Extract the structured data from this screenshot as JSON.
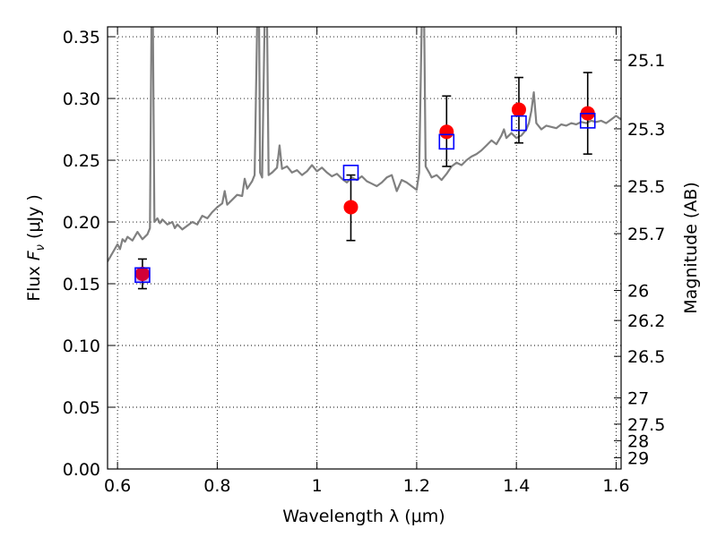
{
  "chart_data": {
    "type": "scatter",
    "xlabel": "Wavelength  λ (μm)",
    "ylabel_prefix": "Flux  ",
    "ylabel_symbol": "F",
    "ylabel_subscript": "ν",
    "ylabel_suffix": "  (μJy )",
    "y2label": "Magnitude (AB)",
    "xlim": [
      0.58,
      1.61
    ],
    "ylim": [
      0.0,
      0.358
    ],
    "grid": true,
    "xticks": [
      {
        "value": 0.6,
        "label": "0.6"
      },
      {
        "value": 0.8,
        "label": "0.8"
      },
      {
        "value": 1.0,
        "label": "1"
      },
      {
        "value": 1.2,
        "label": "1.2"
      },
      {
        "value": 1.4,
        "label": "1.4"
      },
      {
        "value": 1.6,
        "label": "1.6"
      }
    ],
    "yticks": [
      {
        "value": 0.0,
        "label": "0.00"
      },
      {
        "value": 0.05,
        "label": "0.05"
      },
      {
        "value": 0.1,
        "label": "0.10"
      },
      {
        "value": 0.15,
        "label": "0.15"
      },
      {
        "value": 0.2,
        "label": "0.20"
      },
      {
        "value": 0.25,
        "label": "0.25"
      },
      {
        "value": 0.3,
        "label": "0.30"
      },
      {
        "value": 0.35,
        "label": "0.35"
      }
    ],
    "y2ticks": [
      {
        "magnitude": 25.1,
        "label": "25.1"
      },
      {
        "magnitude": 25.3,
        "label": "25.3"
      },
      {
        "magnitude": 25.5,
        "label": "25.5"
      },
      {
        "magnitude": 25.7,
        "label": "25.7"
      },
      {
        "magnitude": 26.0,
        "label": "26"
      },
      {
        "magnitude": 26.2,
        "label": "26.2"
      },
      {
        "magnitude": 26.5,
        "label": "26.5"
      },
      {
        "magnitude": 27.0,
        "label": "27"
      },
      {
        "magnitude": 27.5,
        "label": "27.5"
      },
      {
        "magnitude": 28.0,
        "label": "28"
      },
      {
        "magnitude": 29.0,
        "label": "29"
      }
    ],
    "observed": {
      "color": "#ff0000",
      "points": [
        {
          "x": 0.65,
          "y": 0.158,
          "yerr_low": 0.146,
          "yerr_high": 0.17
        },
        {
          "x": 1.068,
          "y": 0.212,
          "yerr_low": 0.185,
          "yerr_high": 0.238
        },
        {
          "x": 1.26,
          "y": 0.273,
          "yerr_low": 0.245,
          "yerr_high": 0.302
        },
        {
          "x": 1.405,
          "y": 0.291,
          "yerr_low": 0.264,
          "yerr_high": 0.317
        },
        {
          "x": 1.543,
          "y": 0.288,
          "yerr_low": 0.255,
          "yerr_high": 0.321
        }
      ]
    },
    "model_photometry": {
      "color": "#0000ff",
      "points": [
        {
          "x": 0.65,
          "y": 0.157
        },
        {
          "x": 1.068,
          "y": 0.24
        },
        {
          "x": 1.26,
          "y": 0.265
        },
        {
          "x": 1.405,
          "y": 0.28
        },
        {
          "x": 1.543,
          "y": 0.282
        }
      ]
    },
    "spectrum": {
      "color": "#808080",
      "points": [
        [
          0.58,
          0.168
        ],
        [
          0.59,
          0.175
        ],
        [
          0.6,
          0.182
        ],
        [
          0.605,
          0.178
        ],
        [
          0.61,
          0.186
        ],
        [
          0.615,
          0.184
        ],
        [
          0.62,
          0.188
        ],
        [
          0.63,
          0.185
        ],
        [
          0.64,
          0.192
        ],
        [
          0.645,
          0.189
        ],
        [
          0.65,
          0.186
        ],
        [
          0.66,
          0.19
        ],
        [
          0.665,
          0.195
        ],
        [
          0.668,
          0.36
        ],
        [
          0.671,
          0.36
        ],
        [
          0.674,
          0.2
        ],
        [
          0.68,
          0.203
        ],
        [
          0.685,
          0.199
        ],
        [
          0.69,
          0.202
        ],
        [
          0.7,
          0.198
        ],
        [
          0.71,
          0.2
        ],
        [
          0.715,
          0.195
        ],
        [
          0.72,
          0.198
        ],
        [
          0.73,
          0.194
        ],
        [
          0.74,
          0.197
        ],
        [
          0.75,
          0.2
        ],
        [
          0.76,
          0.198
        ],
        [
          0.77,
          0.205
        ],
        [
          0.78,
          0.203
        ],
        [
          0.79,
          0.208
        ],
        [
          0.8,
          0.212
        ],
        [
          0.81,
          0.215
        ],
        [
          0.815,
          0.225
        ],
        [
          0.82,
          0.214
        ],
        [
          0.83,
          0.218
        ],
        [
          0.84,
          0.222
        ],
        [
          0.85,
          0.221
        ],
        [
          0.855,
          0.235
        ],
        [
          0.86,
          0.227
        ],
        [
          0.87,
          0.233
        ],
        [
          0.875,
          0.238
        ],
        [
          0.88,
          0.36
        ],
        [
          0.884,
          0.36
        ],
        [
          0.886,
          0.24
        ],
        [
          0.89,
          0.236
        ],
        [
          0.895,
          0.36
        ],
        [
          0.9,
          0.36
        ],
        [
          0.903,
          0.238
        ],
        [
          0.91,
          0.24
        ],
        [
          0.92,
          0.244
        ],
        [
          0.925,
          0.262
        ],
        [
          0.93,
          0.243
        ],
        [
          0.94,
          0.245
        ],
        [
          0.95,
          0.24
        ],
        [
          0.96,
          0.242
        ],
        [
          0.97,
          0.238
        ],
        [
          0.98,
          0.241
        ],
        [
          0.99,
          0.246
        ],
        [
          1.0,
          0.241
        ],
        [
          1.01,
          0.244
        ],
        [
          1.02,
          0.24
        ],
        [
          1.03,
          0.237
        ],
        [
          1.04,
          0.239
        ],
        [
          1.05,
          0.235
        ],
        [
          1.06,
          0.232
        ],
        [
          1.07,
          0.236
        ],
        [
          1.08,
          0.234
        ],
        [
          1.09,
          0.237
        ],
        [
          1.1,
          0.233
        ],
        [
          1.11,
          0.231
        ],
        [
          1.12,
          0.229
        ],
        [
          1.13,
          0.232
        ],
        [
          1.14,
          0.236
        ],
        [
          1.15,
          0.238
        ],
        [
          1.16,
          0.225
        ],
        [
          1.17,
          0.234
        ],
        [
          1.18,
          0.232
        ],
        [
          1.19,
          0.229
        ],
        [
          1.2,
          0.226
        ],
        [
          1.205,
          0.24
        ],
        [
          1.21,
          0.36
        ],
        [
          1.215,
          0.36
        ],
        [
          1.218,
          0.245
        ],
        [
          1.225,
          0.24
        ],
        [
          1.23,
          0.236
        ],
        [
          1.24,
          0.238
        ],
        [
          1.25,
          0.234
        ],
        [
          1.26,
          0.239
        ],
        [
          1.27,
          0.245
        ],
        [
          1.28,
          0.248
        ],
        [
          1.29,
          0.246
        ],
        [
          1.3,
          0.25
        ],
        [
          1.31,
          0.253
        ],
        [
          1.32,
          0.255
        ],
        [
          1.33,
          0.258
        ],
        [
          1.34,
          0.262
        ],
        [
          1.35,
          0.266
        ],
        [
          1.36,
          0.263
        ],
        [
          1.37,
          0.27
        ],
        [
          1.375,
          0.275
        ],
        [
          1.38,
          0.268
        ],
        [
          1.39,
          0.272
        ],
        [
          1.4,
          0.268
        ],
        [
          1.41,
          0.27
        ],
        [
          1.42,
          0.275
        ],
        [
          1.425,
          0.28
        ],
        [
          1.43,
          0.29
        ],
        [
          1.435,
          0.305
        ],
        [
          1.44,
          0.28
        ],
        [
          1.45,
          0.275
        ],
        [
          1.46,
          0.278
        ],
        [
          1.47,
          0.277
        ],
        [
          1.48,
          0.276
        ],
        [
          1.49,
          0.279
        ],
        [
          1.5,
          0.278
        ],
        [
          1.51,
          0.28
        ],
        [
          1.52,
          0.279
        ],
        [
          1.53,
          0.281
        ],
        [
          1.54,
          0.28
        ],
        [
          1.55,
          0.282
        ],
        [
          1.56,
          0.281
        ],
        [
          1.57,
          0.282
        ],
        [
          1.58,
          0.28
        ],
        [
          1.59,
          0.283
        ],
        [
          1.6,
          0.286
        ],
        [
          1.61,
          0.283
        ]
      ]
    }
  }
}
